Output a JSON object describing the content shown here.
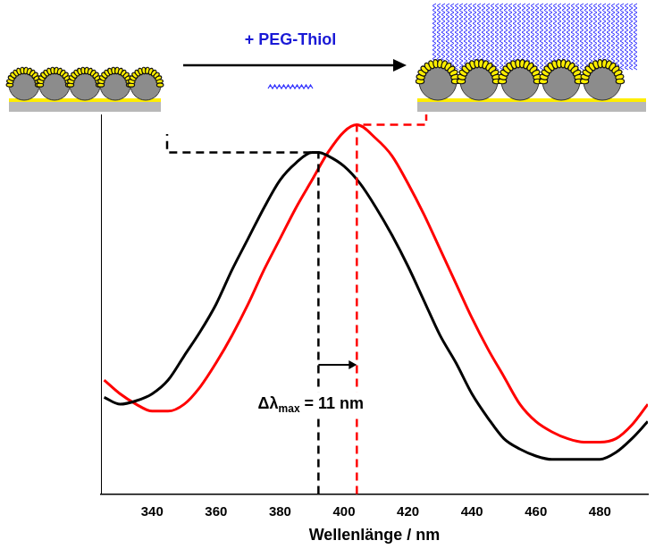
{
  "chart_data": {
    "type": "line",
    "x_label": "Wellenlänge / nm",
    "xlim": [
      324,
      495
    ],
    "xticks": [
      340,
      360,
      380,
      400,
      420,
      440,
      460,
      480
    ],
    "ylim": [
      0,
      1.1
    ],
    "tick_labels": "x",
    "grid": false,
    "series": [
      {
        "color": "#000000",
        "x": [
          325,
          330,
          335,
          340,
          345,
          350,
          355,
          360,
          365,
          370,
          375,
          380,
          385,
          390,
          392,
          395,
          400,
          405,
          410,
          415,
          420,
          425,
          430,
          435,
          440,
          445,
          450,
          455,
          460,
          465,
          470,
          475,
          480,
          485,
          490,
          495
        ],
        "values": [
          0.28,
          0.26,
          0.27,
          0.29,
          0.33,
          0.4,
          0.47,
          0.55,
          0.65,
          0.74,
          0.83,
          0.91,
          0.96,
          0.99,
          0.99,
          0.98,
          0.95,
          0.9,
          0.83,
          0.75,
          0.66,
          0.56,
          0.46,
          0.38,
          0.29,
          0.22,
          0.16,
          0.13,
          0.11,
          0.1,
          0.1,
          0.1,
          0.1,
          0.12,
          0.16,
          0.21
        ]
      },
      {
        "color": "#ff0000",
        "x": [
          325,
          330,
          335,
          340,
          345,
          350,
          355,
          360,
          365,
          370,
          375,
          380,
          385,
          390,
          395,
          400,
          404,
          410,
          415,
          420,
          425,
          430,
          435,
          440,
          445,
          450,
          455,
          460,
          465,
          470,
          475,
          480,
          485,
          490,
          495
        ],
        "values": [
          0.33,
          0.29,
          0.26,
          0.24,
          0.24,
          0.26,
          0.31,
          0.38,
          0.46,
          0.55,
          0.65,
          0.74,
          0.83,
          0.91,
          0.99,
          1.05,
          1.07,
          1.03,
          0.98,
          0.9,
          0.81,
          0.71,
          0.61,
          0.51,
          0.42,
          0.34,
          0.26,
          0.21,
          0.18,
          0.16,
          0.15,
          0.15,
          0.16,
          0.2,
          0.26
        ]
      }
    ],
    "annotations": {
      "reagent": "+ PEG-Thiol",
      "shift": {
        "text": "Δλ",
        "subscript": "max",
        "suffix": " = 11 nm",
        "from": 392,
        "to": 404
      }
    }
  }
}
